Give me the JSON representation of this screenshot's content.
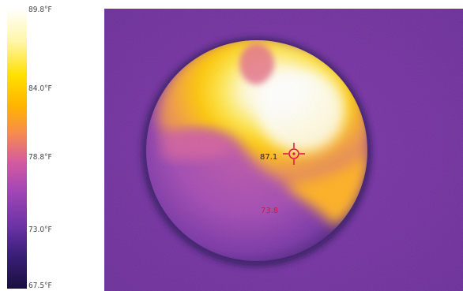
{
  "scale": {
    "ticks": [
      {
        "label": "89.8°F"
      },
      {
        "label": "84.0°F"
      },
      {
        "label": "78.8°F"
      },
      {
        "label": "73.0°F"
      },
      {
        "label": "67.5°F"
      }
    ],
    "gradient_colors": [
      "#ffffff",
      "#ffe000",
      "#f58a52",
      "#a247b5",
      "#1a0f40"
    ]
  },
  "image": {
    "background_color": "#7a34a6",
    "center_reading": "87.1",
    "spot_reading": "73.8",
    "crosshair_icon": "crosshair-icon",
    "crosshair_color": "#e0104a"
  }
}
